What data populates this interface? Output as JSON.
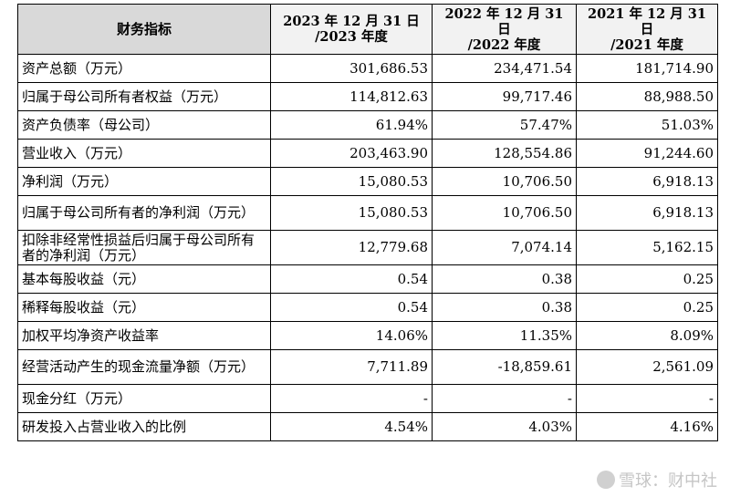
{
  "table": {
    "headers": [
      "财务指标",
      "2023 年 12 月 31 日\n/2023 年度",
      "2022 年 12 月 31 日\n/2022 年度",
      "2021 年 12 月 31 日\n/2021 年度"
    ],
    "rows": [
      {
        "label": "资产总额（万元）",
        "v2023": "301,686.53",
        "v2022": "234,471.54",
        "v2021": "181,714.90"
      },
      {
        "label": "归属于母公司所有者权益（万元）",
        "v2023": "114,812.63",
        "v2022": "99,717.46",
        "v2021": "88,988.50"
      },
      {
        "label": "资产负债率（母公司）",
        "v2023": "61.94%",
        "v2022": "57.47%",
        "v2021": "51.03%"
      },
      {
        "label": "营业收入（万元）",
        "v2023": "203,463.90",
        "v2022": "128,554.86",
        "v2021": "91,244.60"
      },
      {
        "label": "净利润（万元）",
        "v2023": "15,080.53",
        "v2022": "10,706.50",
        "v2021": "6,918.13"
      },
      {
        "label": "归属于母公司所有者的净利润（万元）",
        "v2023": "15,080.53",
        "v2022": "10,706.50",
        "v2021": "6,918.13"
      },
      {
        "label": "扣除非经常性损益后归属于母公司所有者的净利润（万元）",
        "v2023": "12,779.68",
        "v2022": "7,074.14",
        "v2021": "5,162.15"
      },
      {
        "label": "基本每股收益（元）",
        "v2023": "0.54",
        "v2022": "0.38",
        "v2021": "0.25"
      },
      {
        "label": "稀释每股收益（元）",
        "v2023": "0.54",
        "v2022": "0.38",
        "v2021": "0.25"
      },
      {
        "label": "加权平均净资产收益率",
        "v2023": "14.06%",
        "v2022": "11.35%",
        "v2021": "8.09%"
      },
      {
        "label": "经营活动产生的现金流量净额（万元）",
        "v2023": "7,711.89",
        "v2022": "-18,859.61",
        "v2021": "2,561.09"
      },
      {
        "label": "现金分红（万元）",
        "v2023": "-",
        "v2022": "-",
        "v2021": "-"
      },
      {
        "label": "研发投入占营业收入的比例",
        "v2023": "4.54%",
        "v2022": "4.03%",
        "v2021": "4.16%"
      }
    ]
  },
  "watermark": {
    "text": "雪球：财中社",
    "icon": "snowball-icon"
  }
}
